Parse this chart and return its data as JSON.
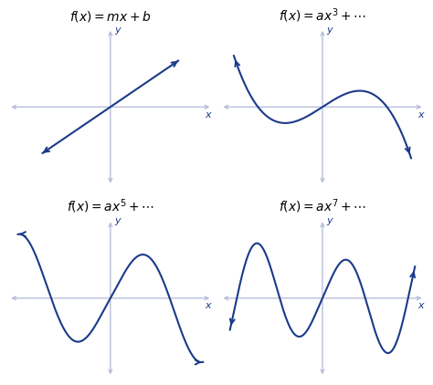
{
  "title1": "$\\it{f}$$(\\it{x}) = \\it{mx} + \\it{b}$",
  "title2": "$\\it{f(x)} = \\it{ax}^3 + \\cdots$",
  "title3": "$\\it{f(x)} = \\it{ax}^5 + \\cdots$",
  "title4": "$\\it{f(x)} = \\it{ax}^7 + \\cdots$",
  "curve_color": "#1a3a8a",
  "axis_color": "#b0b8d8",
  "axis_arrow_color": "#9090b8",
  "label_color": "#1a3a8a",
  "bg_color": "#ffffff",
  "title_fontsize": 10,
  "axis_label_fontsize": 8
}
